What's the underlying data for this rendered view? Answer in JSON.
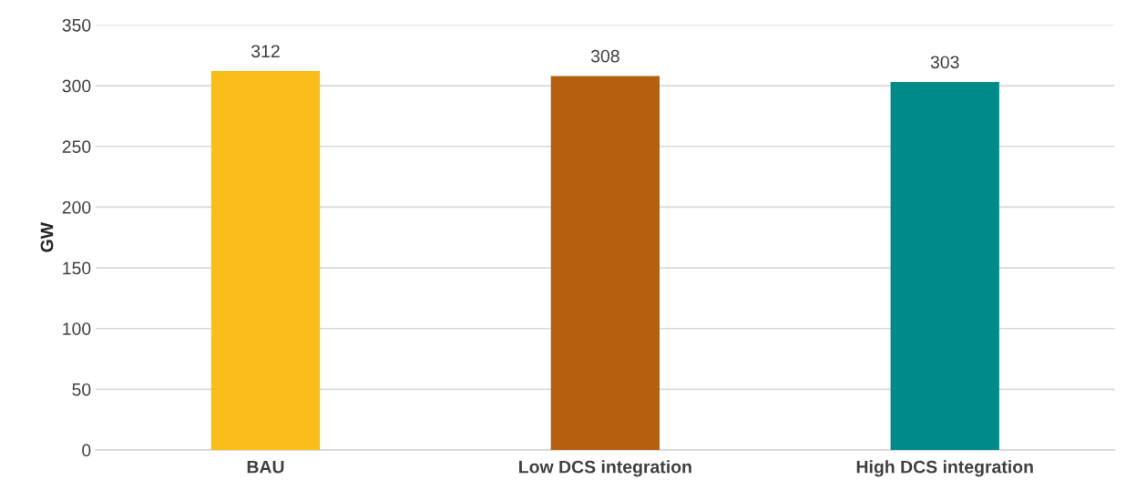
{
  "chart_data": {
    "type": "bar",
    "ylabel": "GW",
    "categories": [
      "BAU",
      "Low DCS integration",
      "High DCS integration"
    ],
    "values": [
      312,
      308,
      303
    ],
    "colors": [
      "#fbbd19",
      "#b5600f",
      "#008b8b"
    ],
    "ylim": [
      0,
      350
    ],
    "yticks": [
      0,
      50,
      100,
      150,
      200,
      250,
      300,
      350
    ],
    "grid": "y",
    "data_labels": true
  }
}
